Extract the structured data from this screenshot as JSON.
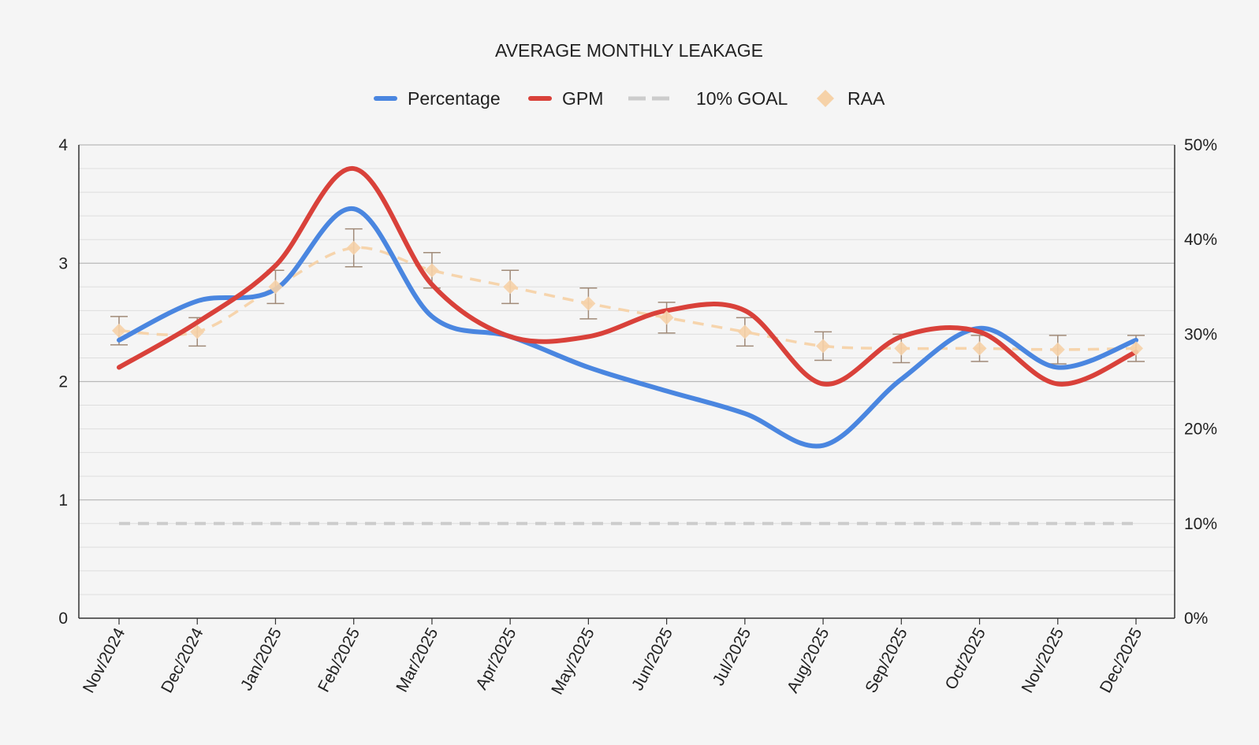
{
  "chart_data": {
    "type": "line",
    "title": "AVERAGE MONTHLY LEAKAGE",
    "categories": [
      "Nov/2024",
      "Dec/2024",
      "Jan/2025",
      "Feb/2025",
      "Mar/2025",
      "Apr/2025",
      "May/2025",
      "Jun/2025",
      "Jul/2025",
      "Aug/2025",
      "Sep/2025",
      "Oct/2025",
      "Nov/2025",
      "Dec/2025"
    ],
    "left_axis": {
      "min": 0,
      "max": 4,
      "ticks": [
        "0",
        "1",
        "2",
        "3",
        "4"
      ],
      "tick_values": [
        0,
        1,
        2,
        3,
        4
      ]
    },
    "right_axis": {
      "min": 0,
      "max": 50,
      "ticks": [
        "0%",
        "10%",
        "20%",
        "30%",
        "40%",
        "50%"
      ],
      "tick_values": [
        0,
        10,
        20,
        30,
        40,
        50
      ]
    },
    "legend": {
      "placement": "top-center"
    },
    "grid": true,
    "series": [
      {
        "name": "Percentage",
        "axis": "left",
        "style": "smooth-line",
        "color": "#4a86e0",
        "values": [
          2.35,
          2.68,
          2.78,
          3.46,
          2.55,
          2.38,
          2.12,
          1.92,
          1.73,
          1.46,
          2.02,
          2.45,
          2.12,
          2.35
        ]
      },
      {
        "name": "GPM",
        "axis": "left",
        "style": "smooth-line",
        "color": "#d9413a",
        "values": [
          2.12,
          2.5,
          2.98,
          3.8,
          2.82,
          2.38,
          2.38,
          2.6,
          2.6,
          1.98,
          2.38,
          2.42,
          1.98,
          2.25
        ]
      },
      {
        "name": "10% GOAL",
        "axis": "right",
        "style": "dashed-line",
        "color": "#cccccc",
        "values": [
          10,
          10,
          10,
          10,
          10,
          10,
          10,
          10,
          10,
          10,
          10,
          10,
          10,
          10
        ]
      },
      {
        "name": "RAA",
        "axis": "left",
        "style": "points",
        "color": "#f6d2a8",
        "error_color": "#a08a78",
        "values": [
          2.43,
          2.42,
          2.8,
          3.13,
          2.94,
          2.8,
          2.66,
          2.54,
          2.42,
          2.3,
          2.28,
          2.28,
          2.27,
          2.28
        ],
        "error": [
          0.12,
          0.12,
          0.14,
          0.16,
          0.15,
          0.14,
          0.13,
          0.13,
          0.12,
          0.12,
          0.12,
          0.11,
          0.12,
          0.11
        ]
      }
    ]
  }
}
